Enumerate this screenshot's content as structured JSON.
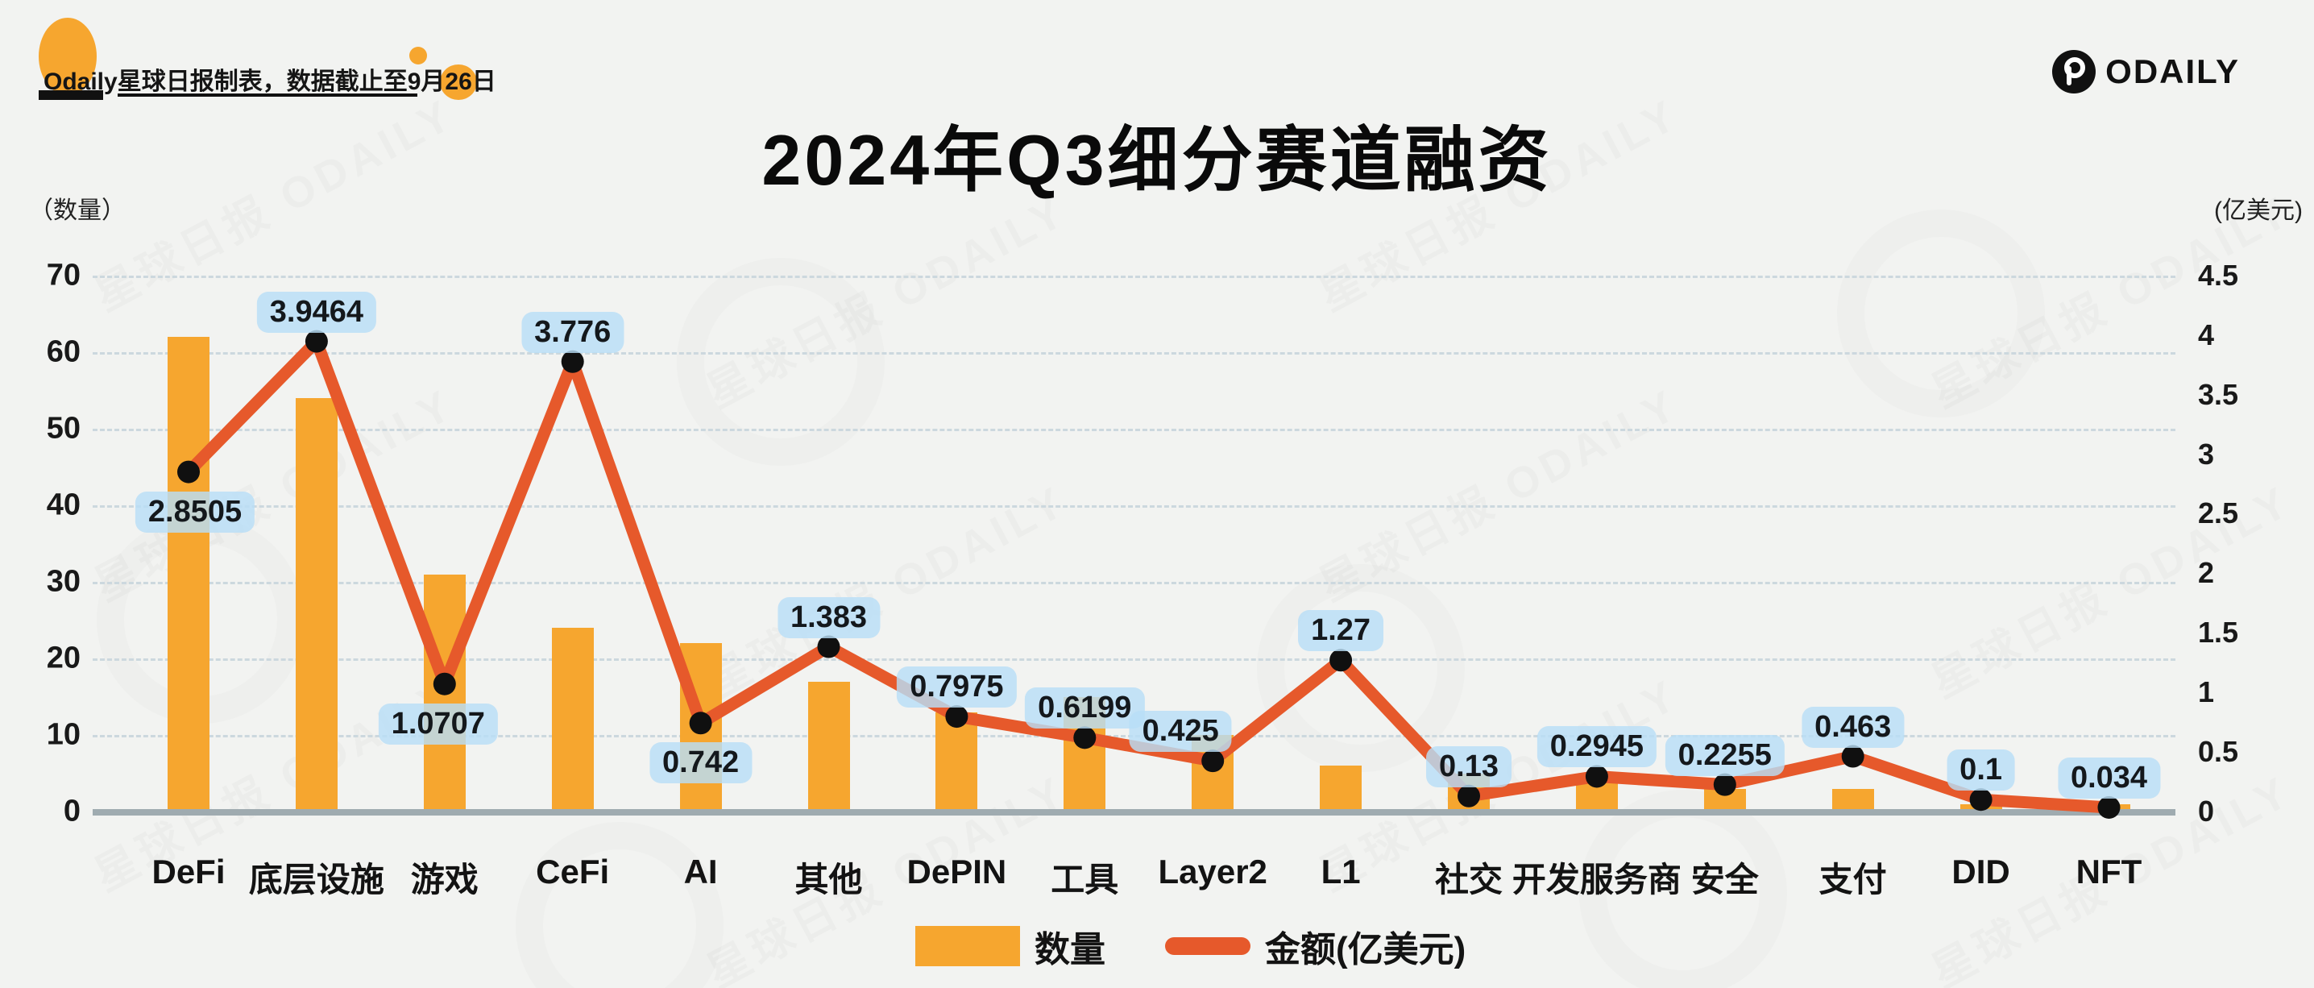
{
  "header": {
    "note_pre": "Odaily星球日报制表，数据截止至9月",
    "note_highlight": "26",
    "note_post": "日"
  },
  "title": "2024年Q3细分赛道融资",
  "brand": {
    "logo_text": "ODAILY"
  },
  "watermark": {
    "text": "星球日报 ODAILY"
  },
  "legend": {
    "bar_label": "数量",
    "line_label": "金额(亿美元)"
  },
  "colors": {
    "background": "#f2f3f1",
    "bar": "#f6a62f",
    "line": "#e6592b",
    "point": "#101010",
    "bubble_bg": "#b8def6",
    "gridline": "#ccd8de",
    "axis_line": "#9fabb0",
    "accent_orange": "#f6a62f",
    "ink": "#111111"
  },
  "chart_data": {
    "type": "bar",
    "subtype": "dual-axis bar + line combo",
    "title": "2024年Q3细分赛道融资",
    "categories": [
      "DeFi",
      "底层设施",
      "游戏",
      "CeFi",
      "AI",
      "其他",
      "DePIN",
      "工具",
      "Layer2",
      "L1",
      "社交",
      "开发服务商",
      "安全",
      "支付",
      "DID",
      "NFT"
    ],
    "series": [
      {
        "name": "数量",
        "type": "bar",
        "axis": "left",
        "values": [
          62,
          54,
          31,
          24,
          22,
          17,
          13,
          15,
          10,
          6,
          5,
          4,
          3,
          3,
          1,
          1
        ]
      },
      {
        "name": "金额(亿美元)",
        "type": "line",
        "axis": "right",
        "values": [
          2.8505,
          3.9464,
          1.0707,
          3.776,
          0.742,
          1.383,
          0.7975,
          0.6199,
          0.425,
          1.27,
          0.13,
          0.2945,
          0.2255,
          0.463,
          0.1,
          0.034
        ],
        "value_labels": [
          "2.8505",
          "3.9464",
          "1.0707",
          "3.776",
          "0.742",
          "1.383",
          "0.7975",
          "0.6199",
          "0.425",
          "1.27",
          "0.13",
          "0.2945",
          "0.2255",
          "0.463",
          "0.1",
          "0.034"
        ]
      }
    ],
    "left_axis": {
      "label": "（数量）",
      "range": [
        0,
        70
      ],
      "ticks": [
        0,
        10,
        20,
        30,
        40,
        50,
        60,
        70
      ]
    },
    "right_axis": {
      "label": "(亿美元)",
      "range": [
        0,
        4.5
      ],
      "ticks": [
        0,
        0.5,
        1,
        1.5,
        2,
        2.5,
        3,
        3.5,
        4,
        4.5
      ]
    },
    "grid": "dashed horizontal, left-axis levels",
    "legend_position": "bottom-center",
    "layout": {
      "label_side": [
        "below",
        "above",
        "below",
        "above",
        "below",
        "above",
        "above",
        "above",
        "above",
        "above",
        "above",
        "above",
        "above",
        "above",
        "above",
        "above"
      ],
      "label_x_nudge": [
        8,
        0,
        -8,
        0,
        0,
        0,
        0,
        0,
        -40,
        0,
        0,
        0,
        0,
        0,
        0,
        0
      ]
    }
  }
}
